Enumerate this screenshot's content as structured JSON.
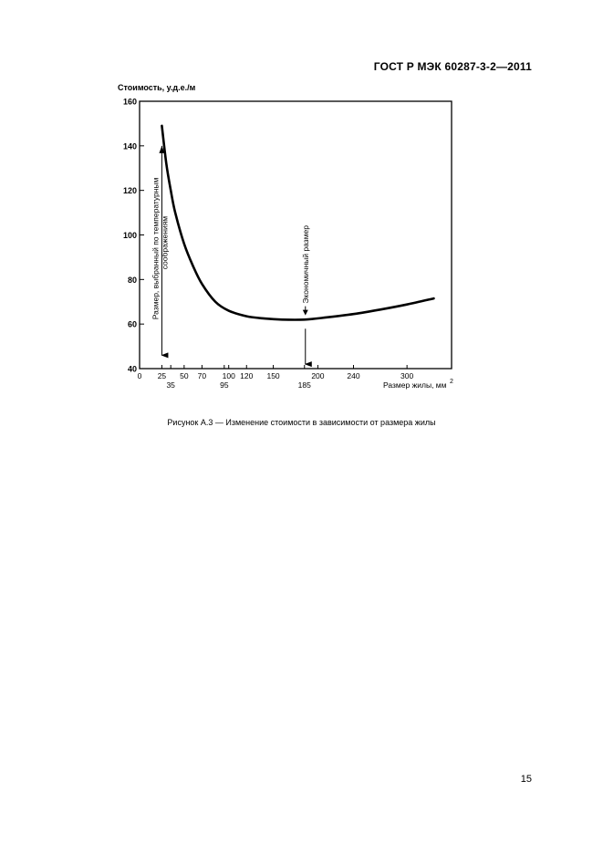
{
  "header": {
    "standard": "ГОСТ Р МЭК 60287-3-2—2011"
  },
  "chart_data": {
    "type": "line",
    "ylabel": "Стоимость, у.д.е./м",
    "xlabel": "Размер жилы, мм",
    "xlabel_sup": "2",
    "xlim": [
      0,
      350
    ],
    "ylim": [
      40,
      160
    ],
    "x_ticks": [
      0,
      25,
      50,
      70,
      100,
      120,
      150,
      200,
      240,
      300
    ],
    "x_ticks_lower": [
      35,
      95,
      185
    ],
    "y_ticks": [
      40,
      60,
      80,
      100,
      120,
      140,
      160
    ],
    "series": [
      {
        "x": [
          25,
          30,
          35,
          40,
          50,
          60,
          70,
          85,
          100,
          120,
          140,
          160,
          185,
          210,
          240,
          270,
          300,
          330
        ],
        "y": [
          149,
          132,
          120,
          110,
          96,
          86,
          78,
          70,
          66,
          63.5,
          62.5,
          62,
          62,
          63,
          64.5,
          66.5,
          68.8,
          71.5
        ]
      }
    ],
    "annotations": [
      {
        "text": "Размер, выбранный по температурным соображениям",
        "x": 25,
        "y_from": 140,
        "y_to": 46
      },
      {
        "text": "Экономичный размер",
        "x": 185,
        "y_from": 68,
        "y_to": 42
      }
    ]
  },
  "caption": "Рисунок А.3 — Изменение стоимости в зависимости от размера жилы",
  "page_number": "15"
}
